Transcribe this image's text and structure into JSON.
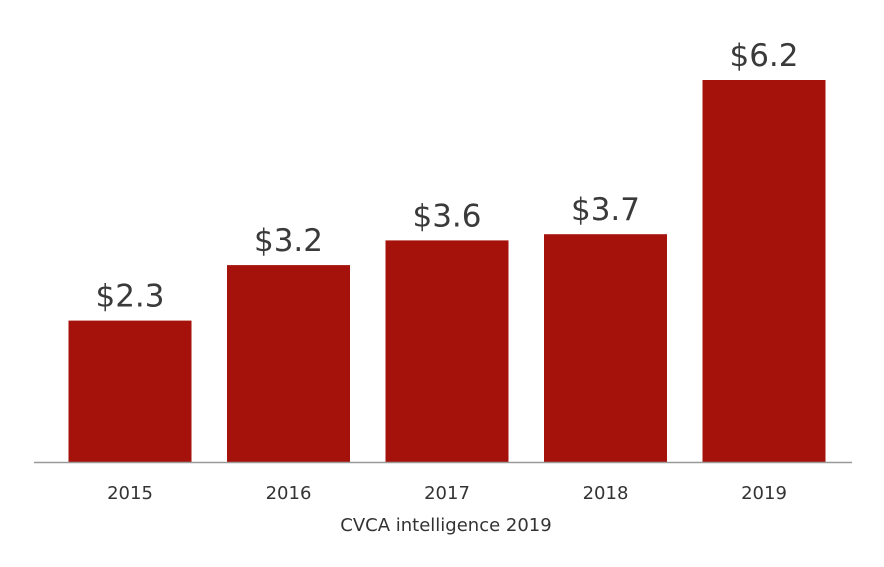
{
  "chart_data": {
    "type": "bar",
    "title": "",
    "xlabel": "CVCA intelligence 2019",
    "ylabel": "",
    "categories": [
      "2015",
      "2016",
      "2017",
      "2018",
      "2019"
    ],
    "values": [
      2.3,
      3.2,
      3.6,
      3.7,
      6.2
    ],
    "value_labels": [
      "$2.3",
      "$3.2",
      "$3.6",
      "$3.7",
      "$6.2"
    ],
    "ylim": [
      0,
      6.2
    ],
    "grid": false,
    "legend": "none"
  },
  "colors": {
    "bar": "#a5120b",
    "axis": "#999999",
    "text": "#333333"
  }
}
